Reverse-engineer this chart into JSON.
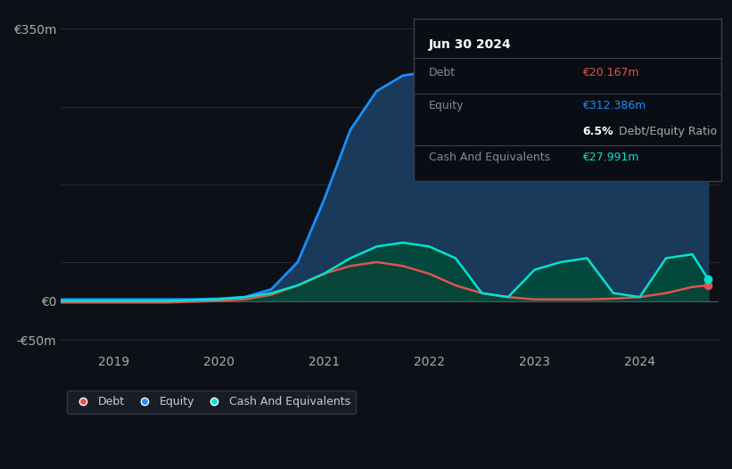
{
  "background_color": "#0d1117",
  "plot_bg_color": "#0d1117",
  "grid_color": "#2a2f3a",
  "title": "Jun 30 2024",
  "table_data": {
    "Debt": {
      "value": "€20.167m",
      "color": "#e05252"
    },
    "Equity": {
      "value": "€312.386m",
      "color": "#1a8fff"
    },
    "ratio_bold": "6.5%",
    "ratio_text": " Debt/Equity Ratio",
    "Cash And Equivalents": {
      "value": "€27.991m",
      "color": "#00e5cc"
    }
  },
  "ylabel_top": "€350m",
  "ylabel_zero": "€0",
  "ylabel_neg": "-€50m",
  "xlim": [
    2018.5,
    2024.75
  ],
  "ylim": [
    -65,
    370
  ],
  "yticks": [
    350,
    0,
    -50
  ],
  "xticks": [
    2019,
    2020,
    2021,
    2022,
    2023,
    2024
  ],
  "equity_color": "#1a8fff",
  "equity_fill": "#1a3a5c",
  "debt_color": "#e05252",
  "debt_fill": "#4a1a2a",
  "cash_color": "#00e5cc",
  "cash_fill": "#004a3a",
  "legend_bg": "#1a1f2b",
  "legend_border": "#3a3f4a",
  "equity_x": [
    2018.5,
    2019.0,
    2019.25,
    2019.5,
    2019.75,
    2020.0,
    2020.25,
    2020.5,
    2020.75,
    2021.0,
    2021.25,
    2021.5,
    2021.75,
    2022.0,
    2022.25,
    2022.5,
    2022.75,
    2023.0,
    2023.25,
    2023.5,
    2023.75,
    2024.0,
    2024.25,
    2024.5,
    2024.65
  ],
  "equity_y": [
    2,
    2,
    2,
    2,
    2,
    3,
    5,
    15,
    50,
    130,
    220,
    270,
    290,
    295,
    310,
    330,
    340,
    340,
    335,
    330,
    330,
    325,
    315,
    312,
    312
  ],
  "debt_x": [
    2018.5,
    2019.0,
    2019.25,
    2019.5,
    2019.75,
    2020.0,
    2020.25,
    2020.5,
    2020.75,
    2021.0,
    2021.25,
    2021.5,
    2021.75,
    2022.0,
    2022.25,
    2022.5,
    2022.75,
    2023.0,
    2023.25,
    2023.5,
    2023.75,
    2024.0,
    2024.25,
    2024.5,
    2024.65
  ],
  "debt_y": [
    -2,
    -2,
    -2,
    -2,
    -1,
    0,
    2,
    8,
    20,
    35,
    45,
    50,
    45,
    35,
    20,
    10,
    5,
    2,
    2,
    2,
    3,
    5,
    10,
    18,
    20
  ],
  "cash_x": [
    2018.5,
    2019.0,
    2019.25,
    2019.5,
    2019.75,
    2020.0,
    2020.25,
    2020.5,
    2020.75,
    2021.0,
    2021.25,
    2021.5,
    2021.75,
    2022.0,
    2022.25,
    2022.5,
    2022.75,
    2023.0,
    2023.25,
    2023.5,
    2023.75,
    2024.0,
    2024.25,
    2024.5,
    2024.65
  ],
  "cash_y": [
    0,
    0,
    0,
    0,
    1,
    2,
    5,
    10,
    20,
    35,
    55,
    70,
    75,
    70,
    55,
    10,
    5,
    40,
    50,
    55,
    10,
    5,
    55,
    60,
    28
  ],
  "dot_size": 6
}
